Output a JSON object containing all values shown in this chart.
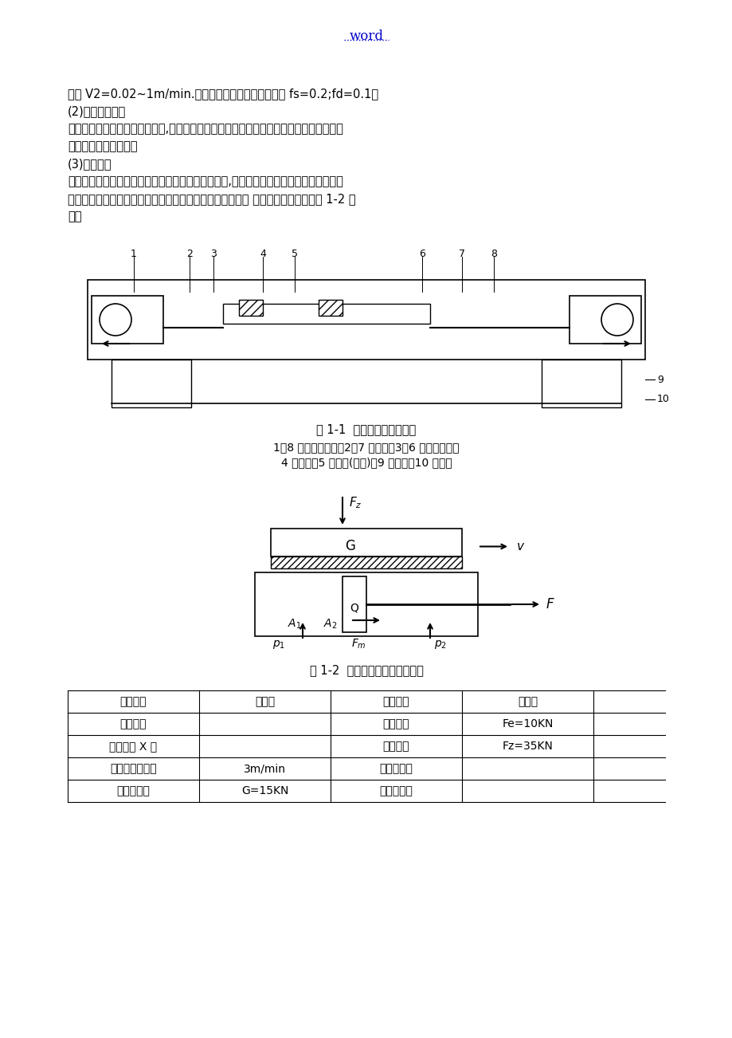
{
  "page_width": 9.2,
  "page_height": 13.02,
  "dpi": 100,
  "background": "#ffffff",
  "header_text": "word",
  "header_color": "#0000cc",
  "header_underline": true,
  "text_color": "#000000",
  "font_size_body": 10.5,
  "paragraphs": [
    "围为 V2=0.02~1m/min.导轨的静、动摩擦因数分别为 fs=0.2;fd=0.1。",
    "(2)配置执行元件",
    "根据车床的总体布局与技术要求,选择缸筒固定的单杆活塞缸作为驱动车削动力头实现进给\n运动的液压执行元件。",
    "(3)工况分析",
    "由于动力头的快速进退与工作进给阶段的速度已给定,不必进展运动分析。故仅对液压缸作\n动力分析，即通过分析计算，确定液压缸总的最大外负载。 液压缸的受力简图如图 1-2 所\n示。"
  ],
  "fig1_caption": "图 1-1  车床总体布局示意图",
  "fig1_subcaption": "1、8 一车削动力头；2、7 一主轴；3、6 一连杆轴颈；\n    4 一夹具；5 一工件(连杆)；9 一导轨；10 一床身",
  "fig2_caption": "图 1-2  车床液压缸受力分析计算",
  "table_headers": [
    "参数类别",
    "参数值",
    "参数类别",
    "参数值"
  ],
  "table_rows": [
    [
      "最大行程",
      "",
      "轴向载荷",
      "Fe=10KN"
    ],
    [
      "工进速度 X 围",
      "",
      "轴向载荷",
      "Fz=35KN"
    ],
    [
      "快进，快退速度",
      "3m/min",
      "动摩擦系数",
      ""
    ],
    [
      "移动部件重",
      "G=15KN",
      "静摩擦系数",
      ""
    ]
  ]
}
